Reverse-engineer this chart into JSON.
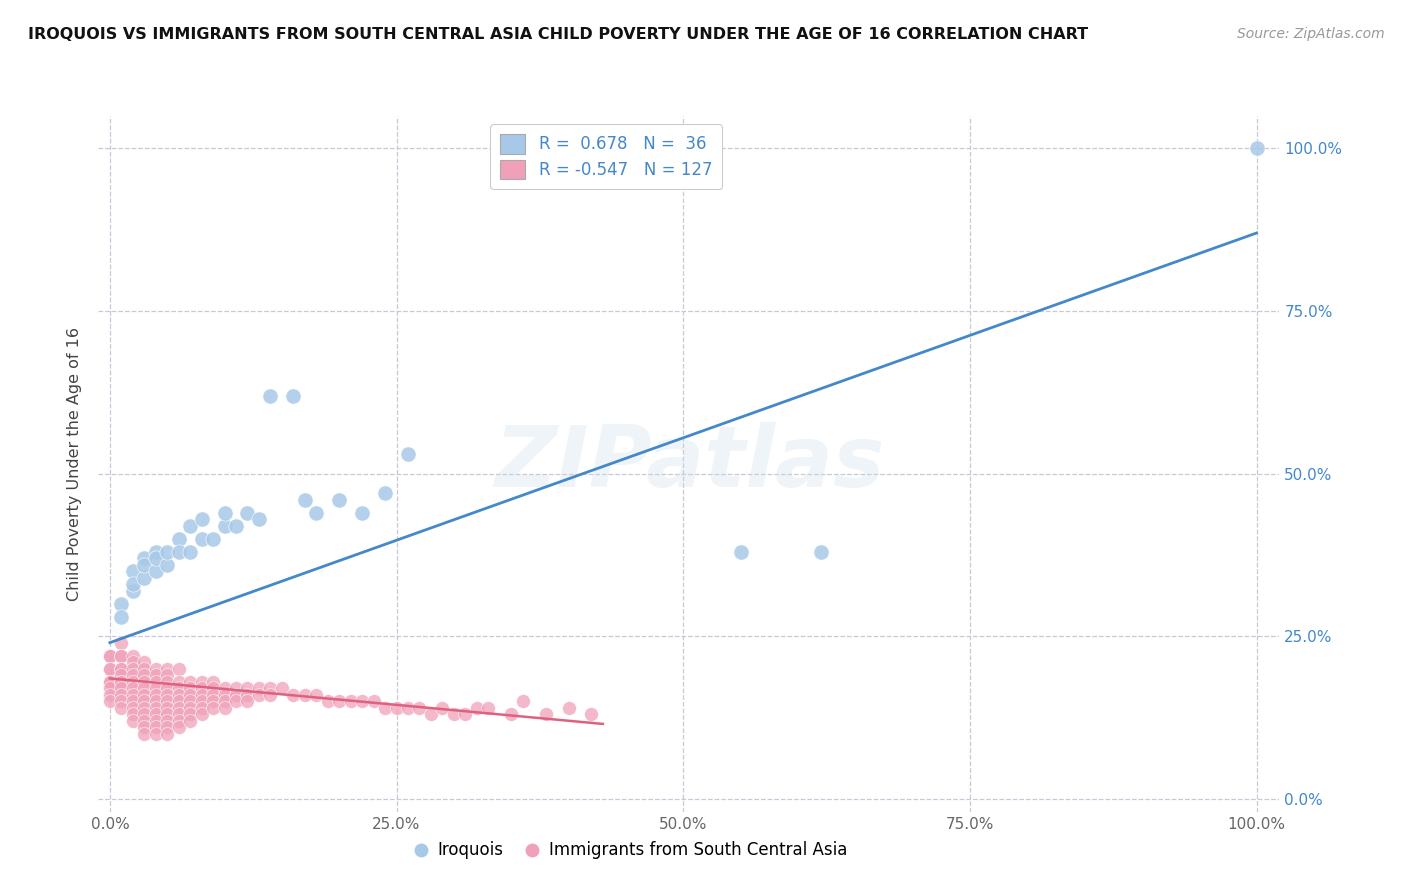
{
  "title": "IROQUOIS VS IMMIGRANTS FROM SOUTH CENTRAL ASIA CHILD POVERTY UNDER THE AGE OF 16 CORRELATION CHART",
  "source": "Source: ZipAtlas.com",
  "ylabel": "Child Poverty Under the Age of 16",
  "watermark": "ZIPatlas",
  "r_blue": 0.678,
  "n_blue": 36,
  "r_pink": -0.547,
  "n_pink": 127,
  "xlim": [
    -0.01,
    1.02
  ],
  "ylim": [
    -0.02,
    1.05
  ],
  "xticks": [
    0.0,
    0.25,
    0.5,
    0.75,
    1.0
  ],
  "yticks": [
    0.0,
    0.25,
    0.5,
    0.75,
    1.0
  ],
  "xticklabels": [
    "0.0%",
    "25.0%",
    "50.0%",
    "75.0%",
    "100.0%"
  ],
  "right_yticklabels": [
    "0.0%",
    "25.0%",
    "50.0%",
    "75.0%",
    "100.0%"
  ],
  "blue_color": "#a8c8e8",
  "blue_line_color": "#4488cc",
  "pink_color": "#f0a0b8",
  "pink_line_color": "#e06080",
  "background_color": "#ffffff",
  "grid_color": "#c8c8d8",
  "blue_scatter": [
    [
      0.01,
      0.3
    ],
    [
      0.01,
      0.28
    ],
    [
      0.02,
      0.32
    ],
    [
      0.02,
      0.35
    ],
    [
      0.02,
      0.33
    ],
    [
      0.03,
      0.34
    ],
    [
      0.03,
      0.37
    ],
    [
      0.03,
      0.36
    ],
    [
      0.04,
      0.35
    ],
    [
      0.04,
      0.38
    ],
    [
      0.04,
      0.37
    ],
    [
      0.05,
      0.36
    ],
    [
      0.05,
      0.38
    ],
    [
      0.06,
      0.4
    ],
    [
      0.06,
      0.38
    ],
    [
      0.07,
      0.38
    ],
    [
      0.07,
      0.42
    ],
    [
      0.08,
      0.4
    ],
    [
      0.08,
      0.43
    ],
    [
      0.09,
      0.4
    ],
    [
      0.1,
      0.42
    ],
    [
      0.1,
      0.44
    ],
    [
      0.11,
      0.42
    ],
    [
      0.12,
      0.44
    ],
    [
      0.13,
      0.43
    ],
    [
      0.14,
      0.62
    ],
    [
      0.16,
      0.62
    ],
    [
      0.17,
      0.46
    ],
    [
      0.18,
      0.44
    ],
    [
      0.2,
      0.46
    ],
    [
      0.22,
      0.44
    ],
    [
      0.24,
      0.47
    ],
    [
      0.26,
      0.53
    ],
    [
      0.55,
      0.38
    ],
    [
      0.62,
      0.38
    ],
    [
      1.0,
      1.0
    ]
  ],
  "pink_scatter": [
    [
      0.0,
      0.22
    ],
    [
      0.0,
      0.22
    ],
    [
      0.0,
      0.2
    ],
    [
      0.0,
      0.2
    ],
    [
      0.0,
      0.18
    ],
    [
      0.0,
      0.18
    ],
    [
      0.0,
      0.17
    ],
    [
      0.0,
      0.16
    ],
    [
      0.0,
      0.15
    ],
    [
      0.01,
      0.24
    ],
    [
      0.01,
      0.22
    ],
    [
      0.01,
      0.22
    ],
    [
      0.01,
      0.2
    ],
    [
      0.01,
      0.2
    ],
    [
      0.01,
      0.19
    ],
    [
      0.01,
      0.18
    ],
    [
      0.01,
      0.18
    ],
    [
      0.01,
      0.17
    ],
    [
      0.01,
      0.16
    ],
    [
      0.01,
      0.15
    ],
    [
      0.01,
      0.14
    ],
    [
      0.02,
      0.22
    ],
    [
      0.02,
      0.21
    ],
    [
      0.02,
      0.2
    ],
    [
      0.02,
      0.19
    ],
    [
      0.02,
      0.18
    ],
    [
      0.02,
      0.17
    ],
    [
      0.02,
      0.16
    ],
    [
      0.02,
      0.15
    ],
    [
      0.02,
      0.14
    ],
    [
      0.02,
      0.13
    ],
    [
      0.02,
      0.12
    ],
    [
      0.03,
      0.21
    ],
    [
      0.03,
      0.2
    ],
    [
      0.03,
      0.19
    ],
    [
      0.03,
      0.18
    ],
    [
      0.03,
      0.17
    ],
    [
      0.03,
      0.16
    ],
    [
      0.03,
      0.15
    ],
    [
      0.03,
      0.14
    ],
    [
      0.03,
      0.13
    ],
    [
      0.03,
      0.12
    ],
    [
      0.03,
      0.11
    ],
    [
      0.03,
      0.1
    ],
    [
      0.04,
      0.2
    ],
    [
      0.04,
      0.19
    ],
    [
      0.04,
      0.18
    ],
    [
      0.04,
      0.17
    ],
    [
      0.04,
      0.16
    ],
    [
      0.04,
      0.15
    ],
    [
      0.04,
      0.14
    ],
    [
      0.04,
      0.13
    ],
    [
      0.04,
      0.12
    ],
    [
      0.04,
      0.11
    ],
    [
      0.04,
      0.1
    ],
    [
      0.05,
      0.2
    ],
    [
      0.05,
      0.19
    ],
    [
      0.05,
      0.18
    ],
    [
      0.05,
      0.17
    ],
    [
      0.05,
      0.16
    ],
    [
      0.05,
      0.15
    ],
    [
      0.05,
      0.14
    ],
    [
      0.05,
      0.13
    ],
    [
      0.05,
      0.12
    ],
    [
      0.05,
      0.11
    ],
    [
      0.05,
      0.1
    ],
    [
      0.06,
      0.2
    ],
    [
      0.06,
      0.18
    ],
    [
      0.06,
      0.17
    ],
    [
      0.06,
      0.16
    ],
    [
      0.06,
      0.15
    ],
    [
      0.06,
      0.14
    ],
    [
      0.06,
      0.13
    ],
    [
      0.06,
      0.12
    ],
    [
      0.06,
      0.11
    ],
    [
      0.07,
      0.18
    ],
    [
      0.07,
      0.17
    ],
    [
      0.07,
      0.16
    ],
    [
      0.07,
      0.15
    ],
    [
      0.07,
      0.14
    ],
    [
      0.07,
      0.13
    ],
    [
      0.07,
      0.12
    ],
    [
      0.08,
      0.18
    ],
    [
      0.08,
      0.17
    ],
    [
      0.08,
      0.16
    ],
    [
      0.08,
      0.15
    ],
    [
      0.08,
      0.14
    ],
    [
      0.08,
      0.13
    ],
    [
      0.09,
      0.18
    ],
    [
      0.09,
      0.17
    ],
    [
      0.09,
      0.16
    ],
    [
      0.09,
      0.15
    ],
    [
      0.09,
      0.14
    ],
    [
      0.1,
      0.17
    ],
    [
      0.1,
      0.16
    ],
    [
      0.1,
      0.15
    ],
    [
      0.1,
      0.14
    ],
    [
      0.11,
      0.17
    ],
    [
      0.11,
      0.16
    ],
    [
      0.11,
      0.15
    ],
    [
      0.12,
      0.17
    ],
    [
      0.12,
      0.16
    ],
    [
      0.12,
      0.15
    ],
    [
      0.13,
      0.17
    ],
    [
      0.13,
      0.16
    ],
    [
      0.14,
      0.17
    ],
    [
      0.14,
      0.16
    ],
    [
      0.15,
      0.17
    ],
    [
      0.16,
      0.16
    ],
    [
      0.17,
      0.16
    ],
    [
      0.18,
      0.16
    ],
    [
      0.19,
      0.15
    ],
    [
      0.2,
      0.15
    ],
    [
      0.21,
      0.15
    ],
    [
      0.22,
      0.15
    ],
    [
      0.23,
      0.15
    ],
    [
      0.24,
      0.14
    ],
    [
      0.25,
      0.14
    ],
    [
      0.26,
      0.14
    ],
    [
      0.27,
      0.14
    ],
    [
      0.28,
      0.13
    ],
    [
      0.29,
      0.14
    ],
    [
      0.3,
      0.13
    ],
    [
      0.31,
      0.13
    ],
    [
      0.32,
      0.14
    ],
    [
      0.33,
      0.14
    ],
    [
      0.35,
      0.13
    ],
    [
      0.36,
      0.15
    ],
    [
      0.38,
      0.13
    ],
    [
      0.4,
      0.14
    ],
    [
      0.42,
      0.13
    ]
  ]
}
